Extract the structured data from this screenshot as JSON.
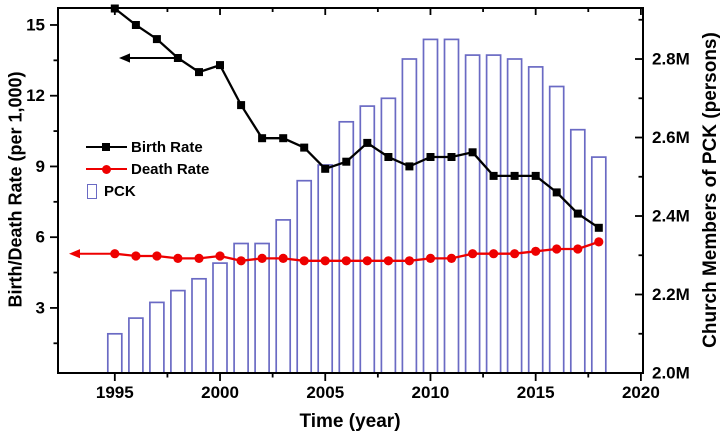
{
  "chart_data": {
    "type": "composite-line-bar",
    "x": [
      1995,
      1996,
      1997,
      1998,
      1999,
      2000,
      2001,
      2002,
      2003,
      2004,
      2005,
      2006,
      2007,
      2008,
      2009,
      2010,
      2011,
      2012,
      2013,
      2014,
      2015,
      2016,
      2017,
      2018
    ],
    "series": [
      {
        "name": "Birth Rate",
        "type": "line",
        "axis": "left",
        "color": "#000000",
        "marker": "square",
        "values": [
          15.7,
          15.0,
          14.4,
          13.6,
          13.0,
          13.3,
          11.6,
          10.2,
          10.2,
          9.8,
          8.9,
          9.2,
          10.0,
          9.4,
          9.0,
          9.4,
          9.4,
          9.6,
          8.6,
          8.6,
          8.6,
          7.9,
          7.0,
          6.4
        ]
      },
      {
        "name": "Death Rate",
        "type": "line",
        "axis": "left",
        "color": "#ee0000",
        "marker": "circle",
        "values": [
          5.3,
          5.2,
          5.2,
          5.1,
          5.1,
          5.2,
          5.0,
          5.1,
          5.1,
          5.0,
          5.0,
          5.0,
          5.0,
          5.0,
          5.0,
          5.1,
          5.1,
          5.3,
          5.3,
          5.3,
          5.4,
          5.5,
          5.5,
          5.8
        ]
      },
      {
        "name": "PCK",
        "type": "bar",
        "axis": "right",
        "color": "#6a6ac4",
        "fill": "#ffffff",
        "values_millions": [
          2.1,
          2.14,
          2.18,
          2.21,
          2.24,
          2.28,
          2.33,
          2.33,
          2.39,
          2.49,
          2.53,
          2.64,
          2.68,
          2.7,
          2.8,
          2.85,
          2.85,
          2.81,
          2.81,
          2.8,
          2.78,
          2.73,
          2.62,
          2.55
        ]
      }
    ],
    "xlabel": "Time (year)",
    "x_axis": {
      "major_ticks": [
        1995,
        2000,
        2005,
        2010,
        2015,
        2020
      ],
      "minor_ticks": [
        1997.5,
        2002.5,
        2007.5,
        2012.5,
        2017.5
      ],
      "range": [
        1992.3,
        2020.1
      ]
    },
    "left_axis": {
      "label": "Birth/Death Rate (per 1,000)",
      "major_ticks": [
        3,
        6,
        9,
        12,
        15
      ],
      "minor_ticks": [
        1.5,
        4.5,
        7.5,
        10.5,
        13.5
      ],
      "range": [
        0.24,
        15.72
      ]
    },
    "right_axis": {
      "label": "Church Members of PCK (persons)",
      "major_ticks": [
        2.0,
        2.2,
        2.4,
        2.6,
        2.8
      ],
      "major_tick_labels": [
        "2.0M",
        "2.2M",
        "2.4M",
        "2.6M",
        "2.8M"
      ],
      "minor_ticks": [
        2.1,
        2.3,
        2.5,
        2.7,
        2.9
      ],
      "range": [
        2.0,
        2.93
      ]
    },
    "legend": {
      "items": [
        "Birth Rate",
        "Death Rate",
        "PCK"
      ],
      "position": "upper-left-inside"
    },
    "annotations": [
      {
        "type": "arrow",
        "direction": "left",
        "series": "Birth Rate",
        "at_year": 1998,
        "at_value": 13.6
      },
      {
        "type": "arrow",
        "direction": "left",
        "series": "Death Rate",
        "at_year": 1995,
        "at_value": 5.3
      }
    ]
  }
}
